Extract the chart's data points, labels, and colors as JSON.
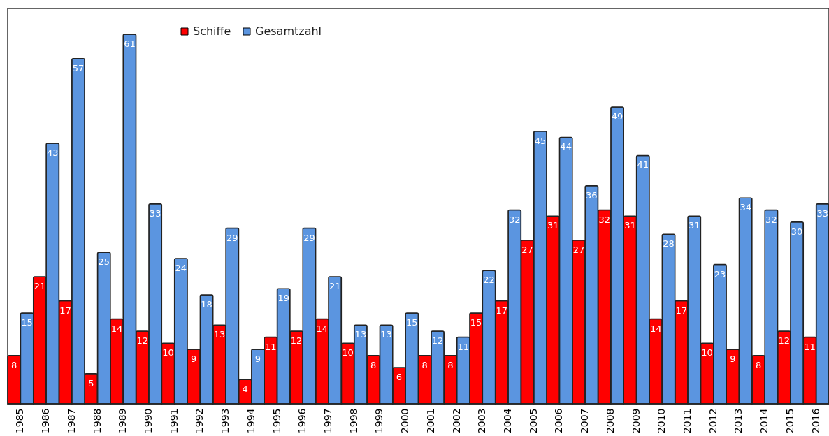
{
  "chart_data": {
    "type": "bar",
    "categories": [
      "1985",
      "1986",
      "1987",
      "1988",
      "1989",
      "1990",
      "1991",
      "1992",
      "1993",
      "1994",
      "1995",
      "1996",
      "1997",
      "1998",
      "1999",
      "2000",
      "2001",
      "2002",
      "2003",
      "2004",
      "2005",
      "2006",
      "2007",
      "2008",
      "2009",
      "2010",
      "2011",
      "2012",
      "2013",
      "2014",
      "2015",
      "2016"
    ],
    "series": [
      {
        "name": "Schiffe",
        "color": "#ff0000",
        "values": [
          8,
          21,
          17,
          5,
          14,
          12,
          10,
          9,
          13,
          4,
          11,
          12,
          14,
          10,
          8,
          6,
          8,
          8,
          15,
          17,
          27,
          31,
          27,
          32,
          31,
          14,
          17,
          10,
          9,
          8,
          12,
          11
        ]
      },
      {
        "name": "Gesamtzahl",
        "color": "#5b95e0",
        "values": [
          15,
          43,
          57,
          25,
          61,
          33,
          24,
          18,
          29,
          9,
          19,
          29,
          21,
          13,
          13,
          15,
          12,
          11,
          22,
          32,
          45,
          44,
          36,
          49,
          41,
          28,
          31,
          23,
          34,
          32,
          30,
          33
        ]
      }
    ],
    "data_labels": true,
    "legend": "top left",
    "grid": false
  }
}
